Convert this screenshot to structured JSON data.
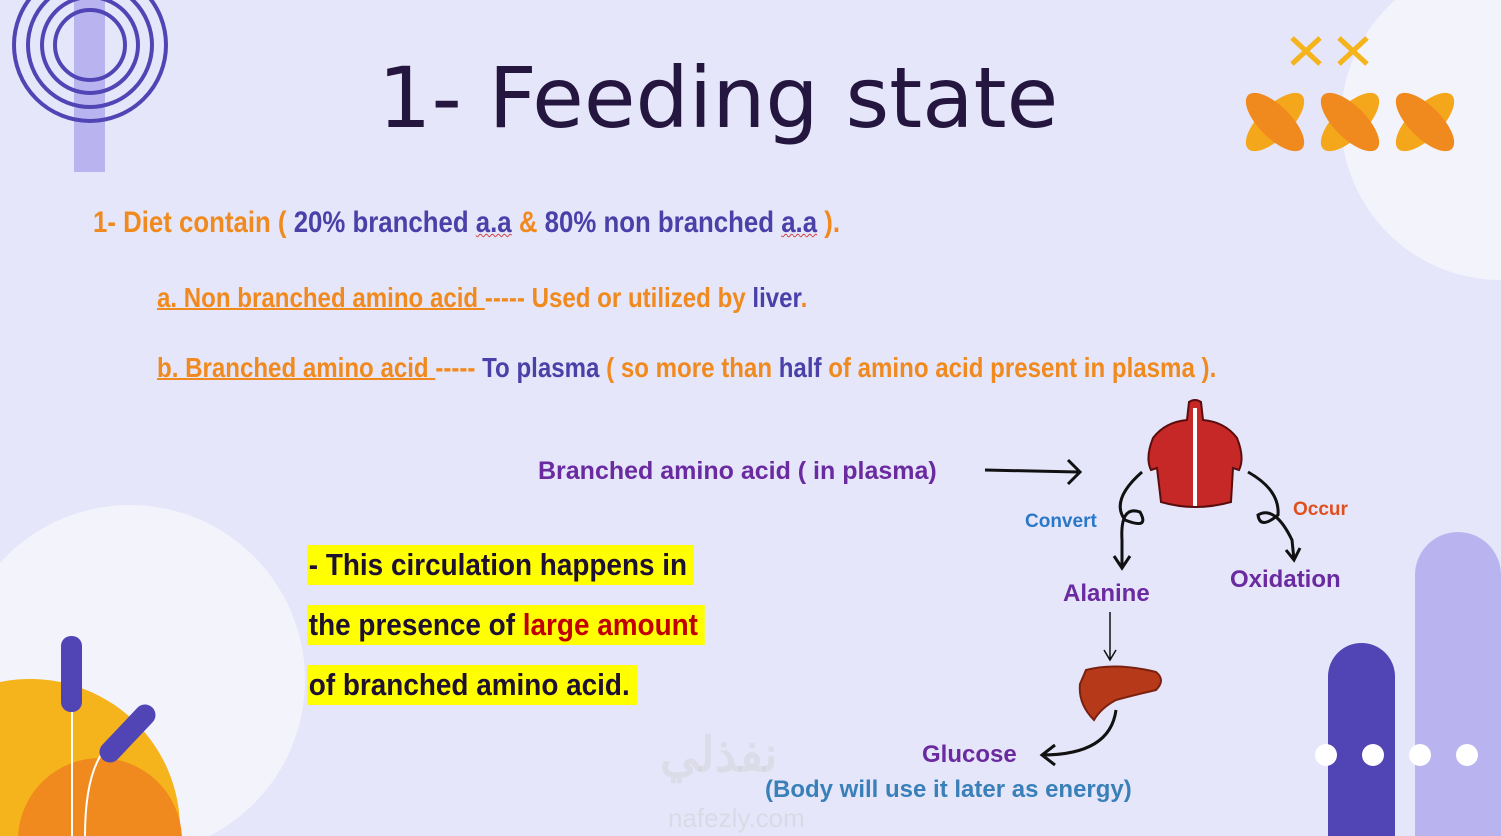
{
  "slide": {
    "title": "1- Feeding state",
    "line1": {
      "a": "1- Diet contain ( ",
      "b": "20% branched ",
      "c": "a.a",
      "d": " & ",
      "e": "80% non branched ",
      "f": "a.a",
      "g": " )."
    },
    "line2": {
      "a": "a. Non branched amino acid ",
      "b": "----- Used or utilized by ",
      "c": "liver",
      "d": "."
    },
    "line3": {
      "a": "b. Branched amino acid ",
      "b": "----- ",
      "c": "To plasma",
      "d": " ( so more than ",
      "e": "half",
      "f": " of amino acid present in plasma )."
    },
    "note": {
      "l1": "- This circulation happens in",
      "l2a": "the presence of ",
      "l2b": "large amount",
      "l3": "of branched amino acid."
    },
    "diagram": {
      "source": "Branched amino acid ( in plasma)",
      "convert": "Convert",
      "occur": "Occur",
      "alanine": "Alanine",
      "oxidation": "Oxidation",
      "glucose": "Glucose",
      "glucose_note": "(Body will use it later as energy)",
      "icons": [
        "muscle-torso-icon",
        "liver-icon"
      ]
    },
    "watermark": {
      "arabic": "نفذلي",
      "latin": "nafezly.com"
    },
    "colors": {
      "background": "#e6e6fa",
      "orange": "#f08a1e",
      "purple": "#4b3fa8",
      "highlight": "#ffff00",
      "red": "#c00000"
    }
  }
}
